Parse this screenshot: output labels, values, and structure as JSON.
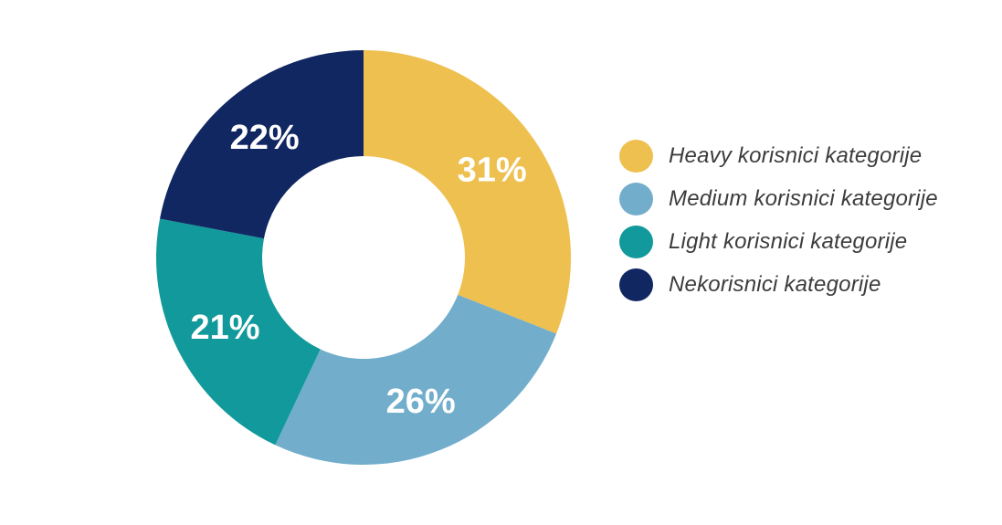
{
  "chart_data": {
    "type": "pie",
    "subtype": "donut",
    "title": "",
    "categories": [
      "Heavy korisnici kategorije",
      "Medium korisnici kategorije",
      "Light korisnici kategorije",
      "Nekorisnici kategorije"
    ],
    "values": [
      31,
      26,
      21,
      22
    ],
    "value_labels": [
      "31%",
      "26%",
      "21%",
      "22%"
    ],
    "colors": [
      "#EEC04F",
      "#72AECB",
      "#11999B",
      "#112761"
    ],
    "start_angle_deg": 0,
    "direction": "clockwise",
    "inner_radius_ratio": 0.49,
    "slice_label_color": "#FFFFFF",
    "legend_position": "right",
    "legend_text_color": "#3C3C3C",
    "background_color": "#FFFFFF"
  }
}
